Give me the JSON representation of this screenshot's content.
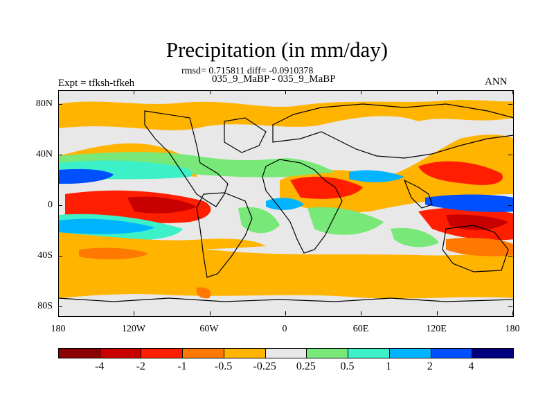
{
  "title": "Precipitation (in mm/day)",
  "stats_line": "rmsd= 0.715811 diff= -0.0910378",
  "case_line": "035_9_MaBP - 035_9_MaBP",
  "left_label": "Expt = tfksh-tfkeh",
  "right_label": "ANN",
  "y_ticks": [
    "80N",
    "40N",
    "0",
    "40S",
    "80S"
  ],
  "x_ticks": [
    "180",
    "120W",
    "60W",
    "0",
    "60E",
    "120E",
    "180"
  ],
  "colorbar": {
    "colors": [
      "#8b0000",
      "#c80000",
      "#ff1e00",
      "#ff7800",
      "#ffb400",
      "#e8e8e8",
      "#78e878",
      "#3cf0c8",
      "#00b4ff",
      "#0050ff",
      "#000080"
    ],
    "labels": [
      "-4",
      "-2",
      "-1",
      "-0.5",
      "-0.25",
      "0.25",
      "0.5",
      "1",
      "2",
      "4"
    ]
  },
  "map_colors": {
    "land_gray": "#e8e8e8",
    "orange": "#ffb400",
    "dark_orange": "#ff7800",
    "red": "#ff1e00",
    "dark_red": "#c80000",
    "green": "#78e878",
    "teal": "#3cf0c8",
    "light_blue": "#00b4ff",
    "blue": "#0050ff"
  }
}
